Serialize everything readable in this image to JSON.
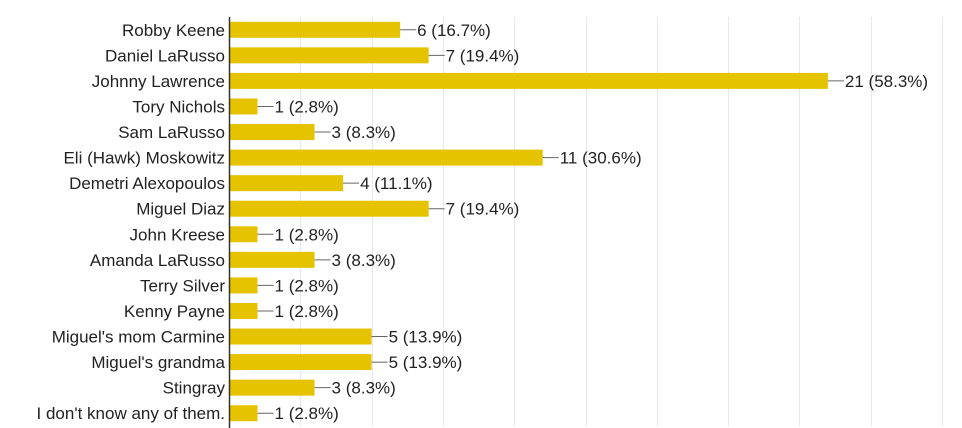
{
  "chart_data": {
    "type": "bar",
    "orientation": "horizontal",
    "categories": [
      "Robby Keene",
      "Daniel LaRusso",
      "Johnny Lawrence",
      "Tory Nichols",
      "Sam LaRusso",
      "Eli (Hawk) Moskowitz",
      "Demetri Alexopoulos",
      "Miguel Diaz",
      "John Kreese",
      "Amanda LaRusso",
      "Terry Silver",
      "Kenny Payne",
      "Miguel's mom Carmine",
      "Miguel's grandma",
      "Stingray",
      "I don't know any of them."
    ],
    "values": [
      6,
      7,
      21,
      1,
      3,
      11,
      4,
      7,
      1,
      3,
      1,
      1,
      5,
      5,
      3,
      1
    ],
    "value_labels": [
      "6 (16.7%)",
      "7 (19.4%)",
      "21 (58.3%)",
      "1 (2.8%)",
      "3 (8.3%)",
      "11 (30.6%)",
      "4 (11.1%)",
      "7 (19.4%)",
      "1 (2.8%)",
      "3 (8.3%)",
      "1 (2.8%)",
      "1 (2.8%)",
      "5 (13.9%)",
      "5 (13.9%)",
      "3 (8.3%)",
      "1 (2.8%)"
    ],
    "xlim": [
      0,
      25
    ],
    "grid": true,
    "bar_color": "#e6c300",
    "grid_color": "#e8e8e8",
    "axis_color": "#333333"
  }
}
